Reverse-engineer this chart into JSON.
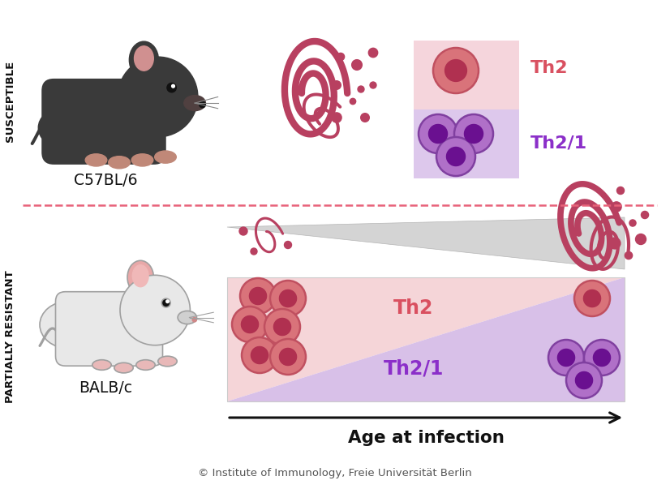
{
  "bg_color": "#ffffff",
  "top_label": "SUSCEPTIBLE",
  "bottom_label": "PARTIALLY RESISTANT",
  "mouse1_label": "C57BL/6",
  "mouse2_label": "BALB/c",
  "th2_label": "Th2",
  "th21_label": "Th2/1",
  "age_label": "Age at infection",
  "copyright": "© Institute of Immunology, Freie Universität Berlin",
  "dashed_line_color": "#e8637a",
  "th2_color": "#d95060",
  "th21_color": "#8b2fc9",
  "cell_pink_fill": "#d9737a",
  "cell_pink_border": "#c05060",
  "cell_pink_inner": "#b03050",
  "cell_purple_fill": "#b070c8",
  "cell_purple_border": "#8040a0",
  "cell_purple_inner": "#6a1090",
  "worm_color": "#b84060",
  "arrow_color": "#111111",
  "tri_fill": "#d0d0d0",
  "tri_edge": "#b0b0b0",
  "box_pink": "#f5d5d8",
  "box_purple": "#d8c0e8",
  "top_cell_box_pink": "#f5d5dc",
  "top_cell_box_purple": "#ddc8ec"
}
